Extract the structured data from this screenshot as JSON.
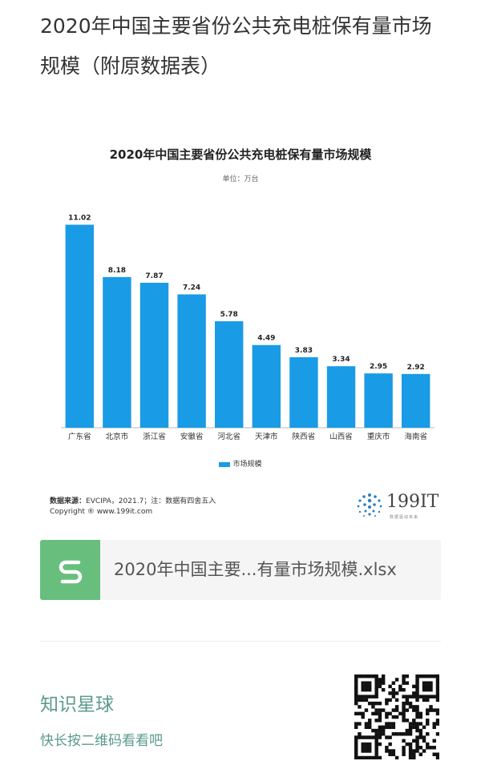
{
  "article": {
    "title": "2020年中国主要省份公共充电桩保有量市场规模（附原数据表）"
  },
  "chart_data": {
    "type": "bar",
    "title": "2020年中国主要省份公共充电桩保有量市场规模",
    "unit_label": "单位：万台",
    "categories": [
      "广东省",
      "北京市",
      "浙江省",
      "安徽省",
      "河北省",
      "天津市",
      "陕西省",
      "山西省",
      "重庆市",
      "海南省"
    ],
    "series": [
      {
        "name": "市场规模",
        "values": [
          11.02,
          8.18,
          7.87,
          7.24,
          5.78,
          4.49,
          3.83,
          3.34,
          2.95,
          2.92
        ],
        "color": "#1a9be6"
      }
    ],
    "value_labels": [
      "11.02",
      "8.18",
      "7.87",
      "7.24",
      "5.78",
      "4.49",
      "3.83",
      "3.34",
      "2.95",
      "2.92"
    ],
    "ylim": [
      0,
      12
    ],
    "grid": false,
    "legend_position": "bottom-center"
  },
  "source": {
    "label": "数据来源：",
    "text": "EVCIPA，2021.7；注：数据有四舍五入",
    "copyright": "Copyright ® www.199it.com"
  },
  "logo": {
    "text": "199IT",
    "sub": "数据驱动未来"
  },
  "file": {
    "icon": "spreadsheet-s-icon",
    "name": "2020年中国主要...有量市场规模.xlsx",
    "color": "#68bf7d"
  },
  "promo": {
    "title": "知识星球",
    "subtitle": "快长按二维码看看吧",
    "color": "#5b9a8b"
  }
}
